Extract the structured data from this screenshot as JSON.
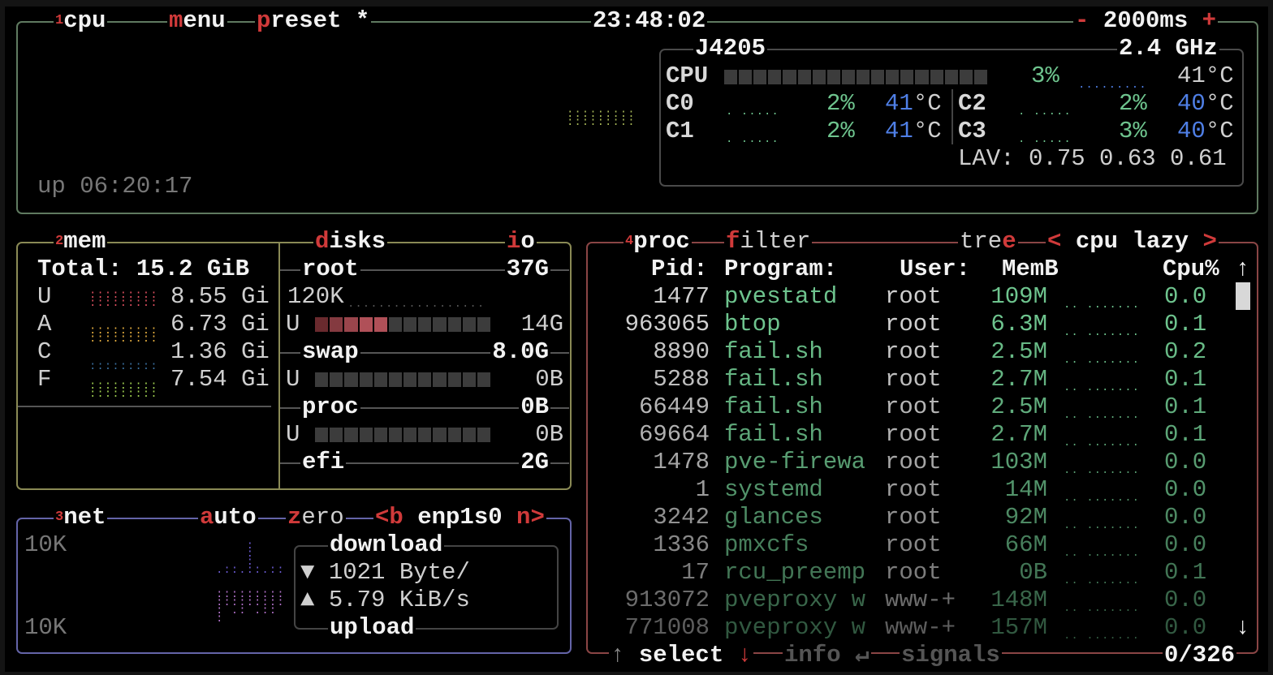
{
  "cpu_box": {
    "number": "1",
    "title": "cpu",
    "menu_hotkey": "m",
    "menu_rest": "enu",
    "preset_hotkey": "p",
    "preset_rest": "reset *",
    "clock": "23:48:02",
    "minus": "-",
    "interval": "2000ms",
    "plus": "+",
    "uptime": "up 06:20:17",
    "model": "J4205",
    "freq": "2.4 GHz",
    "total": {
      "label": "CPU",
      "percent": "3%",
      "temp": "41°C",
      "usage_fraction": 0.03
    },
    "cores": [
      {
        "label": "C0",
        "percent": "2%",
        "temp_value": "41",
        "temp_unit": "°C"
      },
      {
        "label": "C1",
        "percent": "2%",
        "temp_value": "41",
        "temp_unit": "°C"
      },
      {
        "label": "C2",
        "percent": "2%",
        "temp_value": "40",
        "temp_unit": "°C"
      },
      {
        "label": "C3",
        "percent": "3%",
        "temp_value": "40",
        "temp_unit": "°C"
      }
    ],
    "load_avg": "LAV: 0.75 0.63 0.61"
  },
  "mem_box": {
    "number": "2",
    "title": "mem",
    "total": "Total: 15.2 GiB",
    "rows": [
      {
        "label": "U",
        "value": "8.55 Gi",
        "color": "#e05060"
      },
      {
        "label": "A",
        "value": "6.73 Gi",
        "color": "#e8b040"
      },
      {
        "label": "C",
        "value": "1.36 Gi",
        "color": "#3a70a0"
      },
      {
        "label": "F",
        "value": "7.54 Gi",
        "color": "#a0d050"
      }
    ]
  },
  "disks_box": {
    "title_hotkey": "d",
    "title_rest": "isks",
    "io_hotkey": "i",
    "io_rest": "o",
    "io_scale": "120K",
    "disks": [
      {
        "name": "root",
        "size": "37G",
        "used_label": "U",
        "used": "14G",
        "used_fraction": 0.38
      },
      {
        "name": "swap",
        "size": "8.0G",
        "used_label": "U",
        "used": "0B",
        "used_fraction": 0
      },
      {
        "name": "proc",
        "size": "0B",
        "used_label": "U",
        "used": "0B",
        "used_fraction": 0
      },
      {
        "name": "efi",
        "size": "2G"
      }
    ]
  },
  "net_box": {
    "number": "3",
    "title": "net",
    "auto_hotkey": "a",
    "auto_rest": "uto",
    "zero_hotkey": "z",
    "zero_rest": "ero",
    "prev": "<b",
    "interface": "enp1s0",
    "next": "n>",
    "scale_top": "10K",
    "scale_bottom": "10K",
    "download_label": "download",
    "download_icon": "▼",
    "download_rate": "1021 Byte/",
    "upload_icon": "▲",
    "upload_rate": "5.79 KiB/s",
    "upload_label": "upload"
  },
  "proc_box": {
    "number": "4",
    "title": "proc",
    "filter_hotkey": "f",
    "filter_rest": "ilter",
    "tree_rest": "tre",
    "tree_hotkey": "e",
    "sort_prev": "<",
    "sort": "cpu lazy",
    "sort_next": ">",
    "columns": {
      "pid": "Pid:",
      "program": "Program:",
      "user": "User:",
      "mem": "MemB",
      "cpu": "Cpu%"
    },
    "scroll_up": "↑",
    "scroll_down": "↓",
    "rows": [
      {
        "pid": "1477",
        "program": "pvestatd",
        "user": "root",
        "mem": "109M",
        "cpu": "0.0"
      },
      {
        "pid": "963065",
        "program": "btop",
        "user": "root",
        "mem": "6.3M",
        "cpu": "0.1"
      },
      {
        "pid": "8890",
        "program": "fail.sh",
        "user": "root",
        "mem": "2.5M",
        "cpu": "0.2"
      },
      {
        "pid": "5288",
        "program": "fail.sh",
        "user": "root",
        "mem": "2.7M",
        "cpu": "0.1"
      },
      {
        "pid": "66449",
        "program": "fail.sh",
        "user": "root",
        "mem": "2.5M",
        "cpu": "0.1"
      },
      {
        "pid": "69664",
        "program": "fail.sh",
        "user": "root",
        "mem": "2.7M",
        "cpu": "0.1"
      },
      {
        "pid": "1478",
        "program": "pve-firewa",
        "user": "root",
        "mem": "103M",
        "cpu": "0.0"
      },
      {
        "pid": "1",
        "program": "systemd",
        "user": "root",
        "mem": "14M",
        "cpu": "0.0"
      },
      {
        "pid": "3242",
        "program": "glances",
        "user": "root",
        "mem": "92M",
        "cpu": "0.0"
      },
      {
        "pid": "1336",
        "program": "pmxcfs",
        "user": "root",
        "mem": "66M",
        "cpu": "0.0"
      },
      {
        "pid": "17",
        "program": "rcu_preemp",
        "user": "root",
        "mem": "0B",
        "cpu": "0.1"
      },
      {
        "pid": "913072",
        "program": "pveproxy w",
        "user": "www-+",
        "mem": "148M",
        "cpu": "0.0"
      },
      {
        "pid": "771008",
        "program": "pveproxy w",
        "user": "www-+",
        "mem": "157M",
        "cpu": "0.0"
      }
    ],
    "footer": {
      "up": "↑",
      "select": "select",
      "down": "↓",
      "info": "info",
      "enter": "↵",
      "signals": "signals",
      "count": "0/326"
    }
  },
  "colors": {
    "cpu_border": "#5f7a60",
    "mem_border": "#8a8a55",
    "net_border": "#6464a8",
    "proc_border": "#8a4545",
    "hotkey": "#d03a3a",
    "accent_green": "#6ec48e",
    "temp_blue": "#4f7fe6"
  }
}
